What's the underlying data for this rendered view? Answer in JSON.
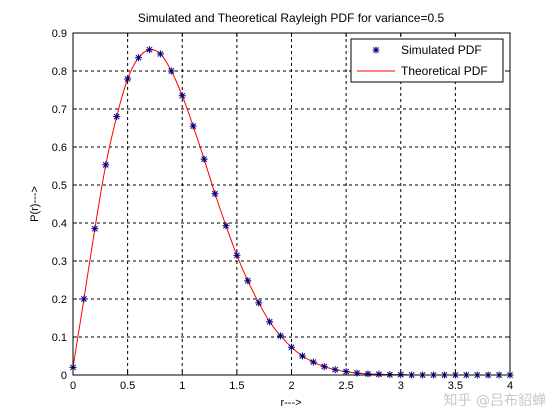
{
  "chart_data": {
    "type": "line",
    "title": "Simulated and Theoretical Rayleigh PDF for variance=0.5",
    "xlabel": "r--->",
    "ylabel": "P(r)--->",
    "xlim": [
      0,
      4
    ],
    "ylim": [
      0,
      0.9
    ],
    "xticks": [
      "0",
      "0.5",
      "1",
      "1.5",
      "2",
      "2.5",
      "3",
      "3.5",
      "4"
    ],
    "yticks": [
      "0",
      "0.1",
      "0.2",
      "0.3",
      "0.4",
      "0.5",
      "0.6",
      "0.7",
      "0.8",
      "0.9"
    ],
    "grid": true,
    "grid_style": "dashed",
    "legend_position": "top-right",
    "series": [
      {
        "name": "Simulated PDF",
        "style": "markers",
        "marker": "asterisk",
        "color": "#00007f",
        "x": [
          0,
          0.1,
          0.2,
          0.3,
          0.4,
          0.5,
          0.6,
          0.7,
          0.8,
          0.9,
          1.0,
          1.1,
          1.2,
          1.3,
          1.4,
          1.5,
          1.6,
          1.7,
          1.8,
          1.9,
          2.0,
          2.1,
          2.2,
          2.3,
          2.4,
          2.5,
          2.6,
          2.7,
          2.8,
          2.9,
          3.0,
          3.1,
          3.2,
          3.3,
          3.4,
          3.5,
          3.6,
          3.7,
          3.8,
          3.9,
          4.0
        ],
        "y": [
          0.02,
          0.2,
          0.385,
          0.553,
          0.68,
          0.779,
          0.835,
          0.856,
          0.845,
          0.8,
          0.735,
          0.655,
          0.568,
          0.477,
          0.393,
          0.315,
          0.248,
          0.19,
          0.14,
          0.103,
          0.073,
          0.05,
          0.034,
          0.022,
          0.014,
          0.009,
          0.005,
          0.003,
          0.002,
          0.001,
          0.001,
          0.0,
          0.0,
          0.0,
          0.0,
          0.0,
          0.0,
          0.0,
          0.0,
          0.0,
          0.0
        ]
      },
      {
        "name": "Theoretical PDF",
        "style": "line",
        "color": "#ff0000",
        "x": [
          0,
          0.1,
          0.2,
          0.3,
          0.4,
          0.5,
          0.6,
          0.7,
          0.8,
          0.9,
          1.0,
          1.1,
          1.2,
          1.3,
          1.4,
          1.5,
          1.6,
          1.7,
          1.8,
          1.9,
          2.0,
          2.1,
          2.2,
          2.3,
          2.4,
          2.5,
          2.6,
          2.7,
          2.8,
          2.9,
          3.0,
          3.1,
          3.2,
          3.3,
          3.4,
          3.5,
          3.6,
          3.7,
          3.8,
          3.9,
          4.0
        ],
        "y": [
          0.02,
          0.2,
          0.385,
          0.553,
          0.68,
          0.779,
          0.835,
          0.856,
          0.845,
          0.8,
          0.735,
          0.655,
          0.568,
          0.477,
          0.393,
          0.315,
          0.248,
          0.19,
          0.14,
          0.103,
          0.073,
          0.05,
          0.034,
          0.022,
          0.014,
          0.009,
          0.005,
          0.003,
          0.002,
          0.001,
          0.001,
          0.0,
          0.0,
          0.0,
          0.0,
          0.0,
          0.0,
          0.0,
          0.0,
          0.0,
          0.0
        ]
      }
    ]
  },
  "watermark": "知乎 @吕布貂蝉"
}
